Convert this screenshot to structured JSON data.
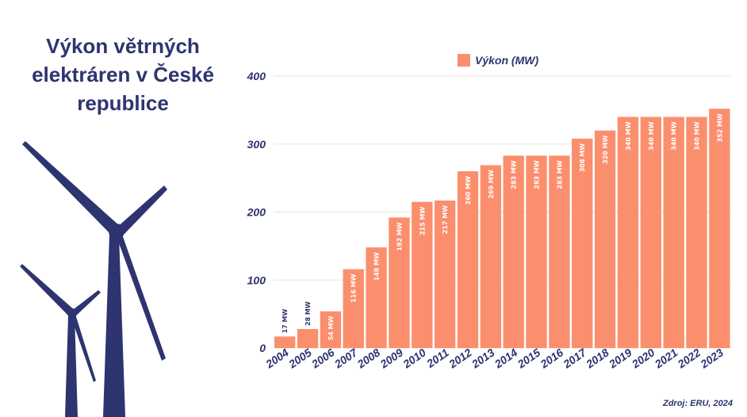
{
  "title": "Výkon větrných elektráren v České republice",
  "source": "Zdroj: ERU, 2024",
  "colors": {
    "bar": "#fb8f6d",
    "text": "#2e3470",
    "grid": "#e6e6e6",
    "turbine": "#2e3470"
  },
  "icons": [
    "wind-turbine-large-icon",
    "wind-turbine-small-icon"
  ],
  "chart_data": {
    "type": "bar",
    "categories": [
      "2004",
      "2005",
      "2006",
      "2007",
      "2008",
      "2009",
      "2010",
      "2011",
      "2012",
      "2013",
      "2014",
      "2015",
      "2016",
      "2017",
      "2018",
      "2019",
      "2020",
      "2021",
      "2022",
      "2023"
    ],
    "series": [
      {
        "name": "Výkon (MW)",
        "values": [
          17,
          28,
          54,
          116,
          148,
          192,
          215,
          217,
          260,
          269,
          283,
          283,
          283,
          308,
          320,
          340,
          340,
          340,
          340,
          352
        ]
      }
    ],
    "data_labels": [
      "17 MW",
      "28 MW",
      "54 MW",
      "116 MW",
      "148 MW",
      "192 MW",
      "215 MW",
      "217 MW",
      "260 MW",
      "269 MW",
      "283 MW",
      "283 MW",
      "283 MW",
      "308 MW",
      "320 MW",
      "340 MW",
      "340 MW",
      "340 MW",
      "340 MW",
      "352 MW"
    ],
    "yticks": [
      "0",
      "100",
      "200",
      "300",
      "400"
    ],
    "ylim": [
      0,
      400
    ],
    "grid": true,
    "legend": "top"
  }
}
